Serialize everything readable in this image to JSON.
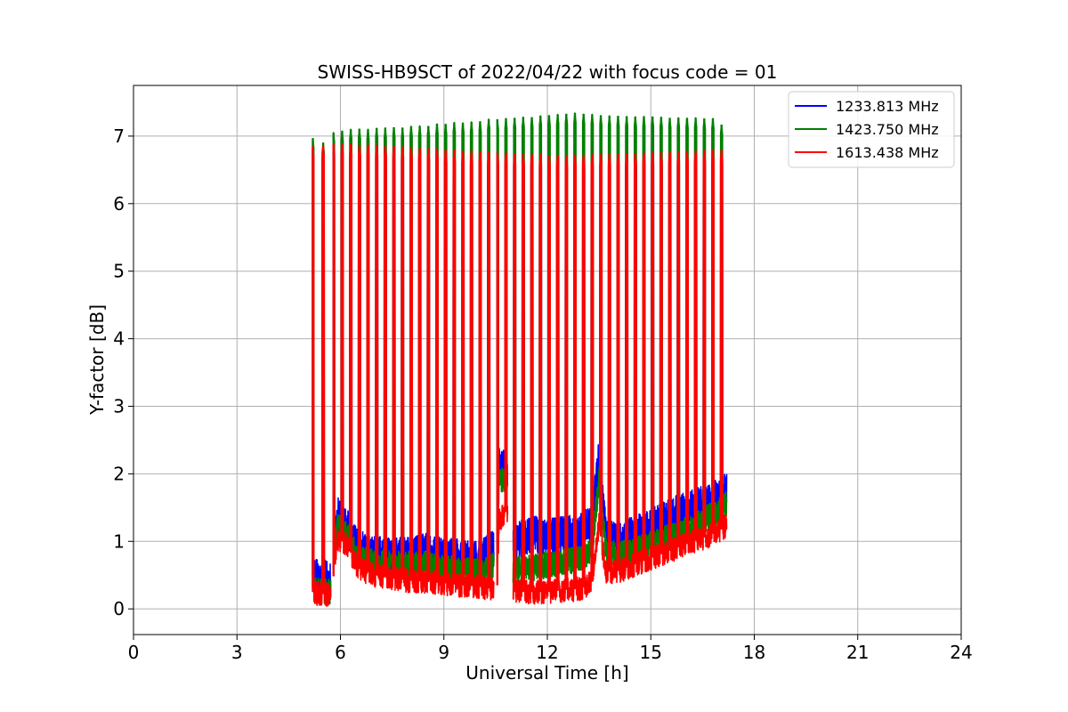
{
  "chart_data": {
    "type": "line",
    "title": "SWISS-HB9SCT of 2022/04/22 with focus code = 01",
    "xlabel": "Universal Time [h]",
    "ylabel": "Y-factor [dB]",
    "xlim": [
      0,
      24
    ],
    "ylim": [
      -0.38,
      7.75
    ],
    "x_ticks": [
      0,
      3,
      6,
      9,
      12,
      15,
      18,
      21,
      24
    ],
    "y_ticks": [
      0,
      1,
      2,
      3,
      4,
      5,
      6,
      7
    ],
    "grid": true,
    "legend_position": "top-right",
    "calibration_peaks": {
      "x": [
        5.2,
        5.5,
        5.8,
        6.05,
        6.3,
        6.55,
        6.8,
        7.05,
        7.3,
        7.55,
        7.8,
        8.05,
        8.3,
        8.55,
        8.8,
        9.05,
        9.3,
        9.55,
        9.8,
        10.05,
        10.3,
        10.55,
        10.8,
        11.05,
        11.3,
        11.55,
        11.8,
        12.05,
        12.3,
        12.55,
        12.8,
        13.05,
        13.3,
        13.55,
        13.8,
        14.05,
        14.3,
        14.55,
        14.8,
        15.05,
        15.3,
        15.55,
        15.8,
        16.05,
        16.3,
        16.55,
        16.8,
        17.05
      ],
      "green": [
        6.97,
        6.9,
        7.05,
        7.08,
        7.1,
        7.11,
        7.1,
        7.12,
        7.12,
        7.13,
        7.12,
        7.15,
        7.15,
        7.15,
        7.18,
        7.18,
        7.2,
        7.2,
        7.21,
        7.22,
        7.25,
        7.25,
        7.26,
        7.27,
        7.28,
        7.28,
        7.3,
        7.31,
        7.32,
        7.33,
        7.34,
        7.33,
        7.32,
        7.31,
        7.3,
        7.3,
        7.29,
        7.29,
        7.29,
        7.29,
        7.28,
        7.27,
        7.27,
        7.27,
        7.27,
        7.26,
        7.26,
        7.17
      ],
      "red": [
        6.85,
        6.85,
        6.88,
        6.88,
        6.88,
        6.87,
        6.87,
        6.87,
        6.86,
        6.85,
        6.84,
        6.83,
        6.82,
        6.82,
        6.81,
        6.8,
        6.79,
        6.78,
        6.78,
        6.77,
        6.76,
        6.76,
        6.75,
        6.74,
        6.74,
        6.73,
        6.73,
        6.72,
        6.72,
        6.72,
        6.72,
        6.72,
        6.73,
        6.73,
        6.74,
        6.74,
        6.74,
        6.75,
        6.75,
        6.76,
        6.76,
        6.77,
        6.77,
        6.78,
        6.78,
        6.79,
        6.8,
        6.8
      ]
    },
    "series": [
      {
        "name": "1233.813 MHz",
        "color": "#0000ff",
        "x": [
          5.2,
          5.4,
          5.6,
          5.75,
          5.9,
          6.2,
          6.5,
          7.0,
          7.5,
          8.0,
          8.5,
          9.0,
          9.5,
          10.0,
          10.3,
          10.55,
          10.6,
          10.9,
          11.0,
          11.3,
          11.6,
          12.0,
          12.5,
          13.0,
          13.3,
          13.5,
          13.7,
          14.0,
          14.5,
          15.0,
          15.5,
          16.0,
          16.5,
          17.0,
          17.2
        ],
        "y": [
          0.5,
          0.45,
          0.45,
          0.4,
          1.4,
          1.2,
          0.9,
          0.8,
          0.78,
          0.8,
          0.85,
          0.78,
          0.75,
          0.72,
          0.85,
          0.95,
          2.1,
          2.1,
          0.95,
          1.05,
          1.1,
          1.05,
          1.1,
          1.15,
          1.3,
          2.3,
          1.05,
          1.0,
          1.1,
          1.2,
          1.35,
          1.45,
          1.55,
          1.65,
          1.75
        ]
      },
      {
        "name": "1423.750 MHz",
        "color": "#008000",
        "x": [
          5.2,
          5.4,
          5.6,
          5.75,
          5.9,
          6.2,
          6.5,
          7.0,
          7.5,
          8.0,
          8.5,
          9.0,
          9.5,
          10.0,
          10.3,
          10.55,
          10.6,
          10.9,
          11.0,
          11.3,
          11.6,
          12.0,
          12.5,
          13.0,
          13.3,
          13.5,
          13.7,
          14.0,
          14.5,
          15.0,
          15.5,
          16.0,
          16.5,
          17.0,
          17.2
        ],
        "y": [
          0.3,
          0.25,
          0.25,
          0.25,
          1.25,
          1.1,
          0.75,
          0.7,
          0.65,
          0.65,
          0.65,
          0.6,
          0.58,
          0.55,
          0.6,
          0.65,
          1.85,
          2.0,
          0.55,
          0.6,
          0.62,
          0.65,
          0.7,
          0.75,
          0.9,
          1.9,
          0.85,
          0.8,
          0.85,
          0.95,
          1.05,
          1.15,
          1.3,
          1.45,
          1.55
        ]
      },
      {
        "name": "1613.438 MHz",
        "color": "#ff0000",
        "x": [
          5.2,
          5.4,
          5.6,
          5.75,
          5.9,
          6.2,
          6.5,
          7.0,
          7.5,
          8.0,
          8.5,
          9.0,
          9.5,
          10.0,
          10.3,
          10.55,
          10.6,
          10.9,
          11.0,
          11.3,
          11.6,
          12.0,
          12.5,
          13.0,
          13.3,
          13.5,
          13.7,
          14.0,
          14.5,
          15.0,
          15.5,
          16.0,
          16.5,
          17.0,
          17.2
        ],
        "y": [
          0.25,
          0.22,
          0.22,
          0.2,
          1.05,
          0.95,
          0.6,
          0.5,
          0.45,
          0.42,
          0.4,
          0.38,
          0.35,
          0.33,
          0.3,
          0.35,
          1.3,
          1.5,
          0.25,
          0.25,
          0.25,
          0.25,
          0.28,
          0.3,
          0.4,
          1.25,
          0.55,
          0.55,
          0.65,
          0.75,
          0.85,
          0.95,
          1.05,
          1.15,
          1.25
        ]
      }
    ]
  }
}
